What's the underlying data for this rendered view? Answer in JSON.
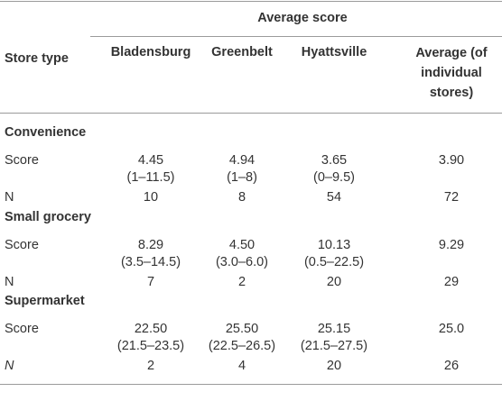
{
  "table": {
    "group_header": "Average score",
    "columns": [
      "Store type",
      "Bladensburg",
      "Greenbelt",
      "Hyattsville",
      "Average (of individual stores)"
    ],
    "sections": [
      {
        "name": "Convenience",
        "score": {
          "label": "Score",
          "values": [
            "4.45",
            "4.94",
            "3.65",
            "3.90"
          ],
          "ranges": [
            "(1–11.5)",
            "(1–8)",
            "(0–9.5)"
          ]
        },
        "n": {
          "label": "N",
          "values": [
            "10",
            "8",
            "54",
            "72"
          ]
        }
      },
      {
        "name": "Small grocery",
        "score": {
          "label": "Score",
          "values": [
            "8.29",
            "4.50",
            "10.13",
            "9.29"
          ],
          "ranges": [
            "(3.5–14.5)",
            "(3.0–6.0)",
            "(0.5–22.5)"
          ]
        },
        "n": {
          "label": "N",
          "values": [
            "7",
            "2",
            "20",
            "29"
          ]
        }
      },
      {
        "name": "Supermarket",
        "score": {
          "label": "Score",
          "values": [
            "22.50",
            "25.50",
            "25.15",
            "25.0"
          ],
          "ranges": [
            "(21.5–23.5)",
            "(22.5–26.5)",
            "(21.5–27.5)"
          ]
        },
        "n": {
          "label": "N",
          "values": [
            "2",
            "4",
            "20",
            "26"
          ]
        }
      }
    ]
  }
}
